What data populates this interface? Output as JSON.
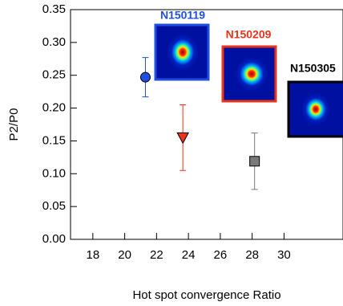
{
  "chart_data": {
    "type": "scatter",
    "y_label": "P2/P0",
    "x_label": "Hot spot convergence Ratio",
    "xlim": [
      16.6,
      33.7
    ],
    "xticks": [
      18,
      20,
      22,
      24,
      26,
      28,
      30
    ],
    "ylim": [
      0,
      0.35
    ],
    "yticks": [
      {
        "value": 0,
        "label": "0.00"
      },
      0.05,
      {
        "value": 0.1,
        "label": "0.10"
      },
      0.15,
      {
        "value": 0.2,
        "label": "0.20"
      },
      0.25,
      {
        "value": 0.3,
        "label": "0.30"
      },
      0.35
    ],
    "points": [
      {
        "x": 21.3,
        "y": 0.247,
        "error": 0.03,
        "color": "#1f4fe0",
        "marker": "circle"
      },
      {
        "x": 23.65,
        "y": 0.155,
        "error": 0.05,
        "color": "#e8341c",
        "marker": "triangle"
      },
      {
        "x": 28.15,
        "y": 0.119,
        "error": 0.043,
        "color": "#7a7a7a",
        "marker": "square"
      }
    ],
    "annotations": [
      "N150119",
      "N150209",
      "N150305"
    ]
  }
}
